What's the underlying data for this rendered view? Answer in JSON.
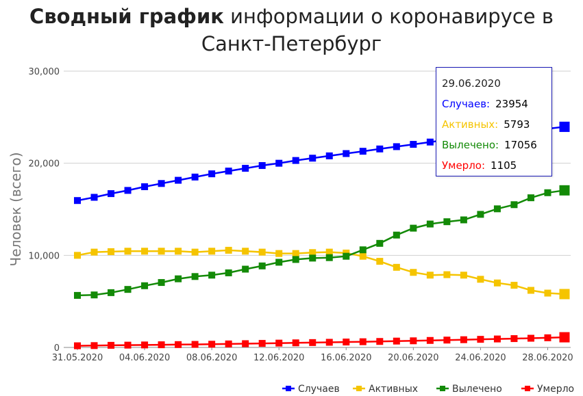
{
  "title": {
    "bold": "Сводный график",
    "rest_line1": " информации о коронавирусе в",
    "line2": "Санкт-Петербург"
  },
  "tooltip": {
    "date": "29.06.2020",
    "rows": [
      {
        "label": "Случаев:",
        "value": "23954",
        "color": "#0000ff"
      },
      {
        "label": "Активных:",
        "value": "5793",
        "color": "#f5c400"
      },
      {
        "label": "Вылечено:",
        "value": "17056",
        "color": "#138a07"
      },
      {
        "label": "Умерло:",
        "value": "1105",
        "color": "#ff0000"
      }
    ]
  },
  "chart_data": {
    "type": "line",
    "ylabel": "Человек (всего)",
    "xlabel": "",
    "ylim": [
      0,
      30000
    ],
    "yticks": [
      0,
      10000,
      20000,
      30000
    ],
    "ytick_labels": [
      "0",
      "10,000",
      "20,000",
      "30,000"
    ],
    "grid": true,
    "legend_position": "bottom-right",
    "x": [
      "31.05.2020",
      "01.06.2020",
      "02.06.2020",
      "03.06.2020",
      "04.06.2020",
      "05.06.2020",
      "06.06.2020",
      "07.06.2020",
      "08.06.2020",
      "09.06.2020",
      "10.06.2020",
      "11.06.2020",
      "12.06.2020",
      "13.06.2020",
      "14.06.2020",
      "15.06.2020",
      "16.06.2020",
      "17.06.2020",
      "18.06.2020",
      "19.06.2020",
      "20.06.2020",
      "21.06.2020",
      "22.06.2020",
      "23.06.2020",
      "24.06.2020",
      "25.06.2020",
      "26.06.2020",
      "27.06.2020",
      "28.06.2020",
      "29.06.2020"
    ],
    "xtick_labels": [
      "31.05.2020",
      "04.06.2020",
      "08.06.2020",
      "12.06.2020",
      "16.06.2020",
      "20.06.2020",
      "24.06.2020",
      "28.06.2020"
    ],
    "series": [
      {
        "name": "Случаев",
        "color": "#0000ff",
        "values": [
          15950,
          16300,
          16700,
          17050,
          17450,
          17800,
          18150,
          18500,
          18850,
          19150,
          19450,
          19750,
          20000,
          20300,
          20550,
          20800,
          21050,
          21300,
          21550,
          21800,
          22050,
          22300,
          22550,
          22750,
          22950,
          23150,
          23350,
          23550,
          23750,
          23954
        ]
      },
      {
        "name": "Активных",
        "color": "#f5c400",
        "values": [
          10000,
          10350,
          10400,
          10450,
          10450,
          10450,
          10450,
          10350,
          10450,
          10550,
          10450,
          10350,
          10200,
          10200,
          10300,
          10350,
          10250,
          9900,
          9350,
          8700,
          8150,
          7850,
          7900,
          7850,
          7400,
          7000,
          6750,
          6200,
          5900,
          5793
        ]
      },
      {
        "name": "Вылечено",
        "color": "#138a07",
        "values": [
          5650,
          5700,
          5950,
          6300,
          6700,
          7050,
          7450,
          7700,
          7850,
          8100,
          8500,
          8850,
          9250,
          9550,
          9700,
          9750,
          9900,
          10600,
          11300,
          12200,
          12950,
          13400,
          13650,
          13850,
          14450,
          15050,
          15500,
          16250,
          16800,
          17056
        ]
      },
      {
        "name": "Умерло",
        "color": "#ff0000",
        "values": [
          180,
          200,
          230,
          250,
          270,
          290,
          310,
          330,
          350,
          380,
          410,
          440,
          470,
          500,
          530,
          560,
          590,
          620,
          650,
          690,
          720,
          760,
          800,
          840,
          880,
          920,
          960,
          1000,
          1050,
          1105
        ]
      }
    ]
  }
}
